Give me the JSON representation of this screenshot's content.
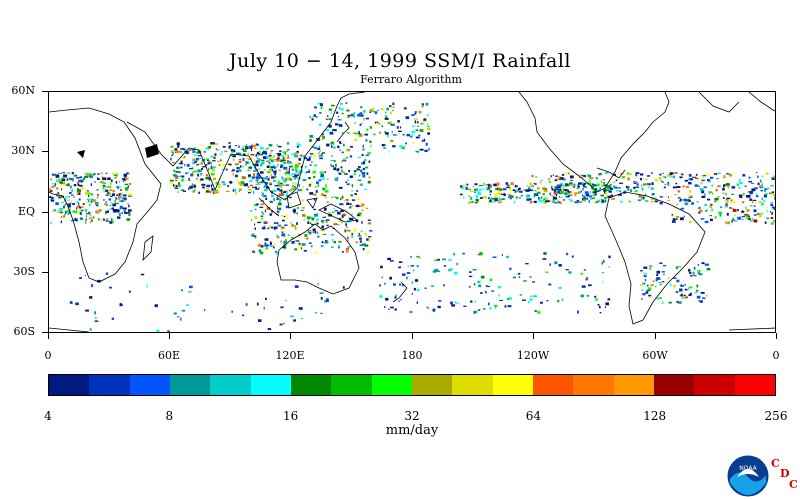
{
  "title": "July 10 − 14, 1999 SSM/I Rainfall",
  "subtitle": "Ferraro Algorithm",
  "map": {
    "lat_labels": [
      "60N",
      "30N",
      "EQ",
      "30S",
      "60S"
    ],
    "lon_labels": [
      "0",
      "60E",
      "120E",
      "180",
      "120W",
      "60W",
      "0"
    ],
    "lat_range": [
      -60,
      60
    ],
    "lon_range": [
      0,
      360
    ]
  },
  "colorbar": {
    "colors": [
      "#001a80",
      "#0033bb",
      "#0055ff",
      "#009999",
      "#00cccc",
      "#00ffff",
      "#008800",
      "#00bb00",
      "#00ff00",
      "#aaaa00",
      "#dddd00",
      "#ffff00",
      "#ff5500",
      "#ff7700",
      "#ff9900",
      "#990000",
      "#cc0000",
      "#ff0000"
    ],
    "tick_labels": [
      "4",
      "8",
      "16",
      "32",
      "64",
      "128",
      "256"
    ],
    "units": "mm/day"
  },
  "logo": {
    "text": "NOAA",
    "cdc_letters": [
      "C",
      "D",
      "C"
    ]
  }
}
